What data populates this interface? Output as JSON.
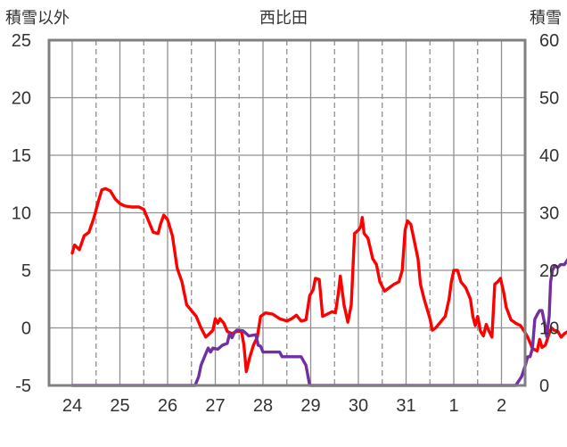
{
  "chart_data": {
    "type": "line",
    "title": "西比田",
    "left_axis_label": "積雪以外",
    "right_axis_label": "積雪",
    "left_ylim": [
      -5,
      25
    ],
    "left_ticks": [
      "25",
      "20",
      "15",
      "10",
      "5",
      "0",
      "-5"
    ],
    "right_ylim": [
      0,
      60
    ],
    "right_ticks": [
      "60",
      "50",
      "40",
      "30",
      "20",
      "10",
      "0"
    ],
    "x_ticks": [
      "24",
      "25",
      "26",
      "27",
      "28",
      "29",
      "30",
      "31",
      "1",
      "2"
    ],
    "grid": true,
    "colors": {
      "temperature": "#ff0000",
      "snow_depth": "#7030a0",
      "axis": "#808080",
      "grid": "#909090"
    },
    "series": [
      {
        "axis": "left",
        "color": "#ff0000",
        "points": [
          [
            0.0,
            6.5
          ],
          [
            0.05,
            7.2
          ],
          [
            0.15,
            6.8
          ],
          [
            0.25,
            8.0
          ],
          [
            0.35,
            8.3
          ],
          [
            0.45,
            9.5
          ],
          [
            0.55,
            11.0
          ],
          [
            0.62,
            12.0
          ],
          [
            0.7,
            12.1
          ],
          [
            0.8,
            11.9
          ],
          [
            0.9,
            11.2
          ],
          [
            1.0,
            10.8
          ],
          [
            1.1,
            10.6
          ],
          [
            1.25,
            10.5
          ],
          [
            1.4,
            10.5
          ],
          [
            1.5,
            10.3
          ],
          [
            1.6,
            9.3
          ],
          [
            1.7,
            8.3
          ],
          [
            1.8,
            8.2
          ],
          [
            1.85,
            9.0
          ],
          [
            1.92,
            9.8
          ],
          [
            2.0,
            9.4
          ],
          [
            2.1,
            8.0
          ],
          [
            2.2,
            5.2
          ],
          [
            2.3,
            4.0
          ],
          [
            2.4,
            2.0
          ],
          [
            2.5,
            1.5
          ],
          [
            2.6,
            1.0
          ],
          [
            2.7,
            0.0
          ],
          [
            2.8,
            -0.8
          ],
          [
            2.88,
            -0.5
          ],
          [
            2.95,
            -0.2
          ],
          [
            3.0,
            0.8
          ],
          [
            3.05,
            0.4
          ],
          [
            3.1,
            0.8
          ],
          [
            3.18,
            0.4
          ],
          [
            3.25,
            -0.3
          ],
          [
            3.35,
            -0.5
          ],
          [
            3.45,
            -0.3
          ],
          [
            3.55,
            -0.3
          ],
          [
            3.6,
            -1.5
          ],
          [
            3.65,
            -3.8
          ],
          [
            3.72,
            -2.6
          ],
          [
            3.8,
            -1.5
          ],
          [
            3.88,
            -0.8
          ],
          [
            3.95,
            1.0
          ],
          [
            4.05,
            1.3
          ],
          [
            4.2,
            1.2
          ],
          [
            4.35,
            0.8
          ],
          [
            4.5,
            0.6
          ],
          [
            4.6,
            0.8
          ],
          [
            4.7,
            1.1
          ],
          [
            4.8,
            0.6
          ],
          [
            4.9,
            0.7
          ],
          [
            4.98,
            2.8
          ],
          [
            5.05,
            3.3
          ],
          [
            5.1,
            4.3
          ],
          [
            5.18,
            4.2
          ],
          [
            5.25,
            1.0
          ],
          [
            5.35,
            1.2
          ],
          [
            5.45,
            1.4
          ],
          [
            5.52,
            1.3
          ],
          [
            5.58,
            3.0
          ],
          [
            5.62,
            4.5
          ],
          [
            5.7,
            2.0
          ],
          [
            5.78,
            0.5
          ],
          [
            5.85,
            2.0
          ],
          [
            5.92,
            8.2
          ],
          [
            6.0,
            8.5
          ],
          [
            6.05,
            8.8
          ],
          [
            6.08,
            9.6
          ],
          [
            6.12,
            8.2
          ],
          [
            6.2,
            7.8
          ],
          [
            6.3,
            6.0
          ],
          [
            6.38,
            5.5
          ],
          [
            6.45,
            4.0
          ],
          [
            6.55,
            3.2
          ],
          [
            6.65,
            3.5
          ],
          [
            6.75,
            3.8
          ],
          [
            6.85,
            4.0
          ],
          [
            6.92,
            5.0
          ],
          [
            6.98,
            8.5
          ],
          [
            7.03,
            9.3
          ],
          [
            7.1,
            9.0
          ],
          [
            7.2,
            7.0
          ],
          [
            7.25,
            6.0
          ],
          [
            7.3,
            3.8
          ],
          [
            7.38,
            2.5
          ],
          [
            7.45,
            1.5
          ],
          [
            7.5,
            0.8
          ],
          [
            7.55,
            -0.2
          ],
          [
            7.62,
            0.0
          ],
          [
            7.72,
            0.5
          ],
          [
            7.82,
            1.0
          ],
          [
            7.9,
            2.5
          ],
          [
            7.95,
            4.0
          ],
          [
            8.0,
            5.0
          ],
          [
            8.08,
            5.0
          ],
          [
            8.15,
            4.0
          ],
          [
            8.25,
            3.5
          ],
          [
            8.35,
            2.5
          ],
          [
            8.4,
            1.0
          ],
          [
            8.45,
            0.2
          ],
          [
            8.5,
            1.0
          ],
          [
            8.56,
            -0.3
          ],
          [
            8.62,
            -0.7
          ],
          [
            8.68,
            0.3
          ],
          [
            8.74,
            -0.3
          ],
          [
            8.8,
            -0.8
          ],
          [
            8.86,
            3.8
          ],
          [
            8.92,
            4.0
          ],
          [
            8.98,
            4.3
          ],
          [
            9.05,
            3.0
          ],
          [
            9.1,
            1.8
          ],
          [
            9.2,
            0.7
          ],
          [
            9.3,
            0.4
          ],
          [
            9.4,
            0.2
          ],
          [
            9.48,
            -0.3
          ],
          [
            9.55,
            -0.8
          ],
          [
            9.65,
            -1.8
          ],
          [
            9.75,
            -2.0
          ],
          [
            9.8,
            -1.0
          ],
          [
            9.85,
            -1.7
          ],
          [
            9.92,
            -1.5
          ],
          [
            10.0,
            -0.5
          ],
          [
            10.05,
            0.0
          ],
          [
            10.1,
            -0.2
          ],
          [
            10.18,
            -0.3
          ],
          [
            10.25,
            -0.8
          ],
          [
            10.32,
            -0.5
          ],
          [
            10.4,
            -0.3
          ]
        ]
      },
      {
        "axis": "right",
        "color": "#7030a0",
        "points": [
          [
            0.0,
            0
          ],
          [
            2.58,
            0
          ],
          [
            2.6,
            0.5
          ],
          [
            2.65,
            1.5
          ],
          [
            2.7,
            3.5
          ],
          [
            2.75,
            4.5
          ],
          [
            2.8,
            5.5
          ],
          [
            2.85,
            6.5
          ],
          [
            2.9,
            5.8
          ],
          [
            2.95,
            6.5
          ],
          [
            3.05,
            6.3
          ],
          [
            3.15,
            7.0
          ],
          [
            3.25,
            7.3
          ],
          [
            3.3,
            9.0
          ],
          [
            3.35,
            8.3
          ],
          [
            3.4,
            9.2
          ],
          [
            3.45,
            9.6
          ],
          [
            3.58,
            9.5
          ],
          [
            3.65,
            9.0
          ],
          [
            3.7,
            8.6
          ],
          [
            3.85,
            8.8
          ],
          [
            3.9,
            7.0
          ],
          [
            3.95,
            6.8
          ],
          [
            4.0,
            5.8
          ],
          [
            4.35,
            5.8
          ],
          [
            4.4,
            5.0
          ],
          [
            4.8,
            5.0
          ],
          [
            4.9,
            3.5
          ],
          [
            4.98,
            0
          ],
          [
            9.3,
            0
          ],
          [
            9.38,
            1.0
          ],
          [
            9.42,
            1.5
          ],
          [
            9.5,
            3.5
          ],
          [
            9.55,
            5.0
          ],
          [
            9.6,
            5.0
          ],
          [
            9.65,
            6.5
          ],
          [
            9.7,
            11.5
          ],
          [
            9.76,
            12.5
          ],
          [
            9.8,
            13.0
          ],
          [
            9.85,
            13.0
          ],
          [
            9.9,
            11.0
          ],
          [
            9.95,
            8.5
          ],
          [
            10.0,
            12.0
          ],
          [
            10.03,
            18.0
          ],
          [
            10.07,
            20.0
          ],
          [
            10.12,
            20.8
          ],
          [
            10.18,
            20.5
          ],
          [
            10.24,
            21.0
          ],
          [
            10.32,
            21.0
          ],
          [
            10.36,
            21.5
          ],
          [
            10.4,
            22.0
          ]
        ]
      }
    ]
  }
}
